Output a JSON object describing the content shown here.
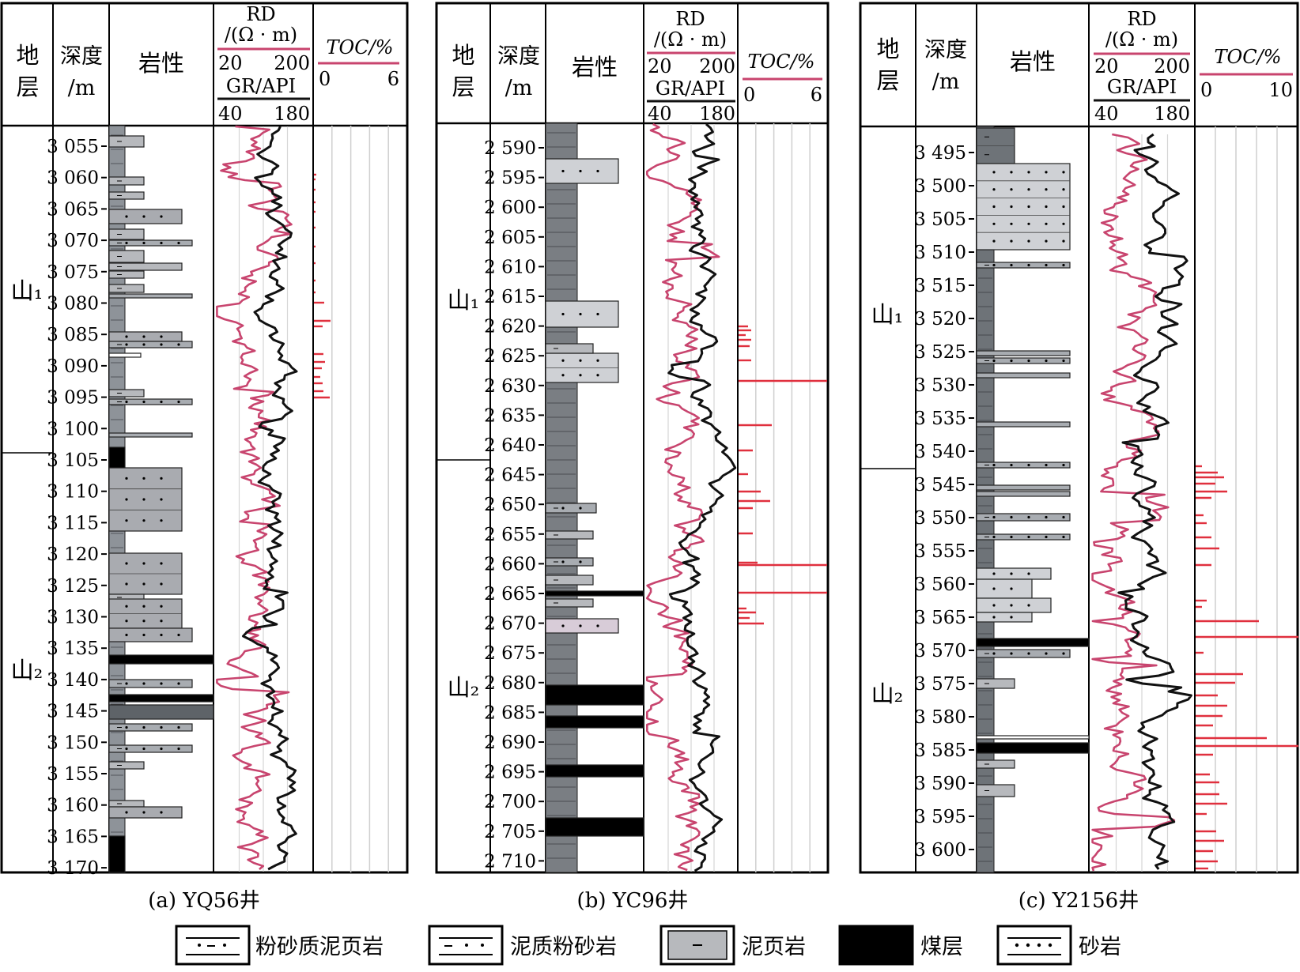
{
  "headers": {
    "stratum": "地层",
    "depth": "深度/m",
    "lithology": "岩性",
    "rd": "RD/(Ω · m)",
    "rd_min": "20",
    "rd_max": "200",
    "gr": "GR/API",
    "gr_min": "40",
    "gr_max": "180",
    "toc": "TOC/%"
  },
  "colors": {
    "gr_curve": "#111111",
    "rd_curve": "#c8446e",
    "toc_bar": "#e0303e",
    "silty_mudstone": "#8e9399",
    "muddy_siltstone": "#a8acb1",
    "mudstone": "#b7b9bd",
    "coal": "#000000",
    "sandstone_a": "#a9abb0",
    "sandstone_b": "#cfd1d5",
    "sandstone_c": "#d8ccd8"
  },
  "wells": [
    {
      "caption": "(a) YQ56井",
      "toc_min": "0",
      "toc_max": "6",
      "depth_ticks": [
        "3 055",
        "3 060",
        "3 065",
        "3 070",
        "3 075",
        "3 080",
        "3 085",
        "3 090",
        "3 095",
        "3 100",
        "3 105",
        "3 110",
        "3 115",
        "3 120",
        "3 125",
        "3 130",
        "3 135",
        "3 140",
        "3 145",
        "3 150",
        "3 155",
        "3 160",
        "3 165",
        "3 170"
      ],
      "strata": [
        {
          "name": "山₁"
        },
        {
          "name": "山₂"
        }
      ]
    },
    {
      "caption": "(b) YC96井",
      "toc_min": "0",
      "toc_max": "6",
      "depth_ticks": [
        "2 590",
        "2 595",
        "2 600",
        "2 605",
        "2 610",
        "2 615",
        "2 620",
        "2 625",
        "2 630",
        "2 635",
        "2 640",
        "2 645",
        "2 650",
        "2 655",
        "2 660",
        "2 665",
        "2 670",
        "2 675",
        "2 680",
        "2 685",
        "2 690",
        "2 695",
        "2 700",
        "2 705",
        "2 710"
      ],
      "strata": [
        {
          "name": "山₁"
        },
        {
          "name": "山₂"
        }
      ]
    },
    {
      "caption": "(c) Y2156井",
      "toc_min": "0",
      "toc_max": "10",
      "depth_ticks": [
        "3 495",
        "3 500",
        "3 505",
        "3 510",
        "3 515",
        "3 520",
        "3 525",
        "3 530",
        "3 535",
        "3 540",
        "3 545",
        "3 550",
        "3 555",
        "3 560",
        "3 565",
        "3 570",
        "3 575",
        "3 580",
        "3 585",
        "3 590",
        "3 595",
        "3 600"
      ],
      "strata": [
        {
          "name": "山₁"
        },
        {
          "name": "山₂"
        }
      ]
    }
  ],
  "legend": [
    {
      "label": "粉砂质泥页岩",
      "pattern": "silty_mudstone"
    },
    {
      "label": "泥质粉砂岩",
      "pattern": "muddy_siltstone"
    },
    {
      "label": "泥页岩",
      "pattern": "mudstone"
    },
    {
      "label": "煤层",
      "pattern": "coal"
    },
    {
      "label": "砂岩",
      "pattern": "sandstone"
    }
  ]
}
